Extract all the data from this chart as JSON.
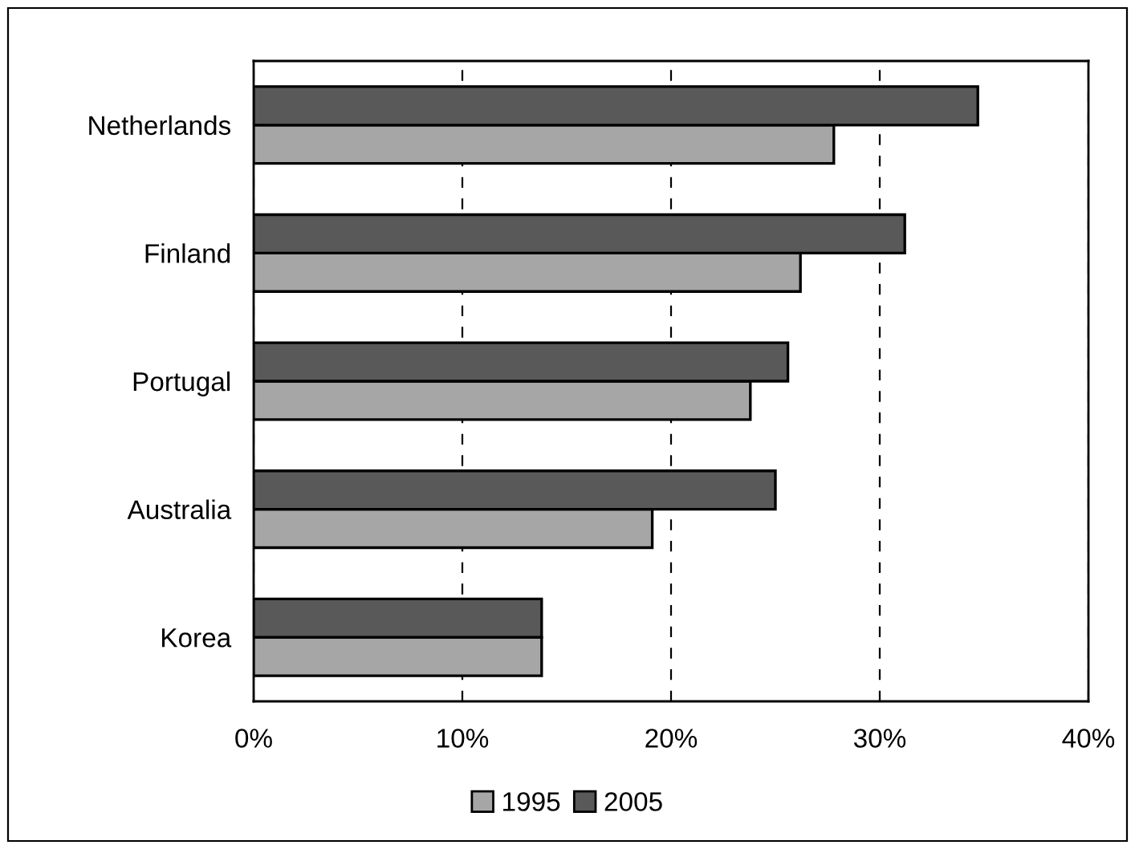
{
  "chart_data": {
    "type": "bar",
    "orientation": "horizontal",
    "categories": [
      "Netherlands",
      "Finland",
      "Portugal",
      "Australia",
      "Korea"
    ],
    "series": [
      {
        "name": "1995",
        "color": "#a6a6a6",
        "values": [
          27.8,
          26.2,
          23.8,
          19.1,
          13.8
        ]
      },
      {
        "name": "2005",
        "color": "#595959",
        "values": [
          34.7,
          31.2,
          25.6,
          25.0,
          13.8
        ]
      }
    ],
    "xlim": [
      0,
      40
    ],
    "xticks": [
      {
        "value": 0,
        "label": "0%"
      },
      {
        "value": 10,
        "label": "10%"
      },
      {
        "value": 20,
        "label": "20%"
      },
      {
        "value": 30,
        "label": "30%"
      },
      {
        "value": 40,
        "label": "40%"
      }
    ],
    "grid": "x",
    "legend": "bottom"
  }
}
